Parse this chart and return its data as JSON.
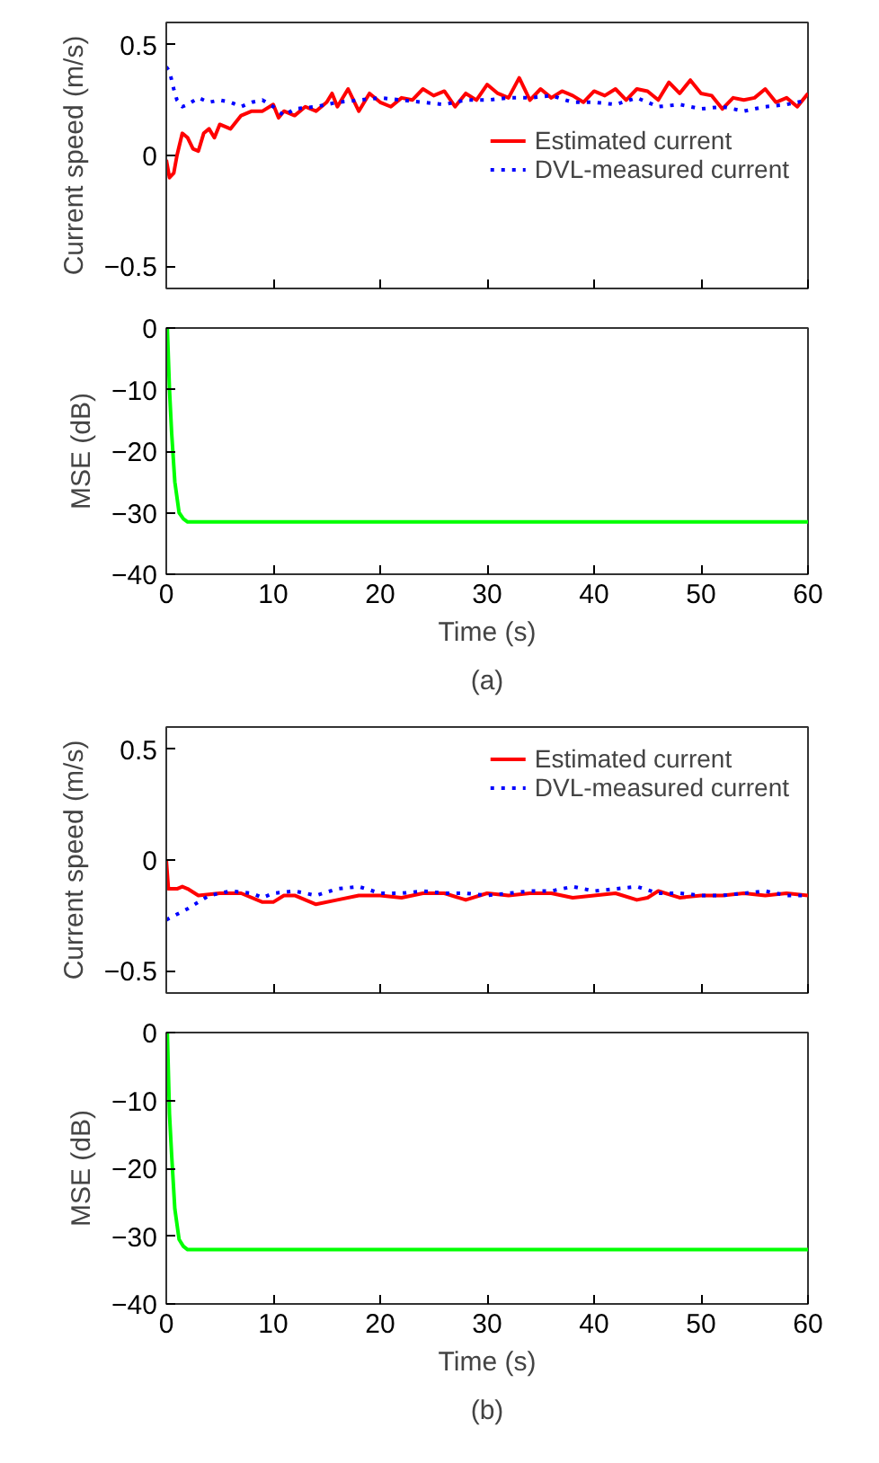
{
  "chart_data": [
    {
      "type": "line",
      "ylabel": "Current speed (m/s)",
      "xlim": [
        0,
        60
      ],
      "ylim": [
        -0.6,
        0.6
      ],
      "xticks": [
        {
          "value": 0,
          "label": null
        },
        {
          "value": 10,
          "label": null
        },
        {
          "value": 20,
          "label": null
        },
        {
          "value": 30,
          "label": null
        },
        {
          "value": 40,
          "label": null
        },
        {
          "value": 50,
          "label": null
        },
        {
          "value": 60,
          "label": null
        }
      ],
      "yticks": [
        -0.5,
        0,
        0.5
      ],
      "tick_labels": "y",
      "legend": "right",
      "grid": false,
      "series": [
        {
          "name": "Estimated current",
          "color": "#ff0000",
          "line_style": "solid",
          "x": [
            0,
            0.3,
            0.7,
            1,
            1.5,
            2,
            2.5,
            3,
            3.5,
            4,
            4.5,
            5,
            6,
            7,
            8,
            9,
            10,
            10.5,
            11,
            12,
            13,
            14,
            15,
            15.5,
            16,
            17,
            18,
            19,
            20,
            21,
            22,
            23,
            24,
            25,
            26,
            27,
            28,
            29,
            30,
            31,
            32,
            33,
            34,
            35,
            36,
            37,
            38,
            39,
            40,
            41,
            42,
            43,
            44,
            45,
            46,
            47,
            48,
            49,
            50,
            51,
            52,
            53,
            54,
            55,
            56,
            57,
            58,
            59,
            60
          ],
          "values": [
            -0.02,
            -0.1,
            -0.08,
            0.0,
            0.1,
            0.08,
            0.03,
            0.02,
            0.1,
            0.12,
            0.08,
            0.14,
            0.12,
            0.18,
            0.2,
            0.2,
            0.23,
            0.17,
            0.2,
            0.18,
            0.22,
            0.2,
            0.24,
            0.28,
            0.22,
            0.3,
            0.2,
            0.28,
            0.24,
            0.22,
            0.26,
            0.25,
            0.3,
            0.27,
            0.29,
            0.22,
            0.28,
            0.25,
            0.32,
            0.28,
            0.26,
            0.35,
            0.25,
            0.3,
            0.26,
            0.29,
            0.27,
            0.24,
            0.29,
            0.27,
            0.3,
            0.25,
            0.3,
            0.29,
            0.25,
            0.33,
            0.28,
            0.34,
            0.28,
            0.27,
            0.21,
            0.26,
            0.25,
            0.26,
            0.3,
            0.24,
            0.26,
            0.22,
            0.28
          ]
        },
        {
          "name": "DVL-measured current",
          "color": "#0000ff",
          "line_style": "dotted",
          "x": [
            0,
            0.3,
            0.7,
            1,
            1.5,
            2,
            3,
            4,
            5,
            6,
            7,
            8,
            9,
            10,
            11,
            12,
            14,
            16,
            18,
            20,
            22,
            24,
            26,
            28,
            30,
            32,
            34,
            36,
            38,
            40,
            42,
            44,
            46,
            48,
            50,
            52,
            54,
            56,
            58,
            60
          ],
          "values": [
            0.4,
            0.38,
            0.3,
            0.25,
            0.22,
            0.23,
            0.26,
            0.24,
            0.25,
            0.24,
            0.22,
            0.24,
            0.25,
            0.22,
            0.18,
            0.21,
            0.22,
            0.24,
            0.25,
            0.26,
            0.25,
            0.24,
            0.23,
            0.25,
            0.25,
            0.26,
            0.26,
            0.27,
            0.24,
            0.24,
            0.23,
            0.26,
            0.22,
            0.23,
            0.21,
            0.22,
            0.2,
            0.22,
            0.23,
            0.25
          ]
        }
      ]
    },
    {
      "type": "line",
      "xlabel": "Time (s)",
      "ylabel": "MSE (dB)",
      "xlim": [
        0,
        60
      ],
      "ylim": [
        -40,
        0
      ],
      "xticks": [
        0,
        10,
        20,
        30,
        40,
        50,
        60
      ],
      "yticks": [
        -40,
        -30,
        -20,
        -10,
        0
      ],
      "grid": false,
      "annotations": [
        "(a)"
      ],
      "series": [
        {
          "color": "#00ff00",
          "x": [
            0.1,
            0.3,
            0.5,
            0.8,
            1.2,
            1.6,
            2,
            3,
            60
          ],
          "values": [
            0,
            -10,
            -17,
            -25,
            -30,
            -31,
            -31.5,
            -31.5,
            -31.5
          ]
        }
      ]
    },
    {
      "type": "line",
      "ylabel": "Current speed (m/s)",
      "xlim": [
        0,
        60
      ],
      "ylim": [
        -0.6,
        0.6
      ],
      "xticks": [
        {
          "value": 0,
          "label": null
        },
        {
          "value": 10,
          "label": null
        },
        {
          "value": 20,
          "label": null
        },
        {
          "value": 30,
          "label": null
        },
        {
          "value": 40,
          "label": null
        },
        {
          "value": 50,
          "label": null
        },
        {
          "value": 60,
          "label": null
        }
      ],
      "yticks": [
        -0.5,
        0,
        0.5
      ],
      "tick_labels": "y",
      "legend": "top right",
      "grid": false,
      "series": [
        {
          "name": "Estimated current",
          "color": "#ff0000",
          "line_style": "solid",
          "x": [
            0,
            0.2,
            1,
            1.5,
            2,
            3,
            5,
            7,
            9,
            10,
            11,
            12,
            14,
            16,
            18,
            20,
            22,
            24,
            26,
            28,
            30,
            32,
            34,
            36,
            38,
            40,
            42,
            44,
            45,
            46,
            48,
            50,
            52,
            54,
            56,
            58,
            60
          ],
          "values": [
            0,
            -0.13,
            -0.13,
            -0.12,
            -0.13,
            -0.16,
            -0.15,
            -0.15,
            -0.19,
            -0.19,
            -0.16,
            -0.16,
            -0.2,
            -0.18,
            -0.16,
            -0.16,
            -0.17,
            -0.15,
            -0.15,
            -0.18,
            -0.15,
            -0.16,
            -0.15,
            -0.15,
            -0.17,
            -0.16,
            -0.15,
            -0.18,
            -0.17,
            -0.14,
            -0.17,
            -0.16,
            -0.16,
            -0.15,
            -0.16,
            -0.15,
            -0.16
          ]
        },
        {
          "name": "DVL-measured current",
          "color": "#0000ff",
          "line_style": "dotted",
          "x": [
            0,
            2,
            4,
            6,
            8,
            9,
            10,
            12,
            14,
            16,
            18,
            20,
            22,
            24,
            26,
            28,
            30,
            32,
            34,
            36,
            38,
            40,
            42,
            44,
            46,
            48,
            50,
            52,
            54,
            56,
            58,
            60
          ],
          "values": [
            -0.27,
            -0.22,
            -0.16,
            -0.14,
            -0.15,
            -0.17,
            -0.15,
            -0.14,
            -0.16,
            -0.13,
            -0.12,
            -0.15,
            -0.15,
            -0.14,
            -0.15,
            -0.15,
            -0.16,
            -0.15,
            -0.14,
            -0.14,
            -0.12,
            -0.14,
            -0.13,
            -0.12,
            -0.15,
            -0.15,
            -0.16,
            -0.16,
            -0.15,
            -0.14,
            -0.16,
            -0.16
          ]
        }
      ]
    },
    {
      "type": "line",
      "xlabel": "Time (s)",
      "ylabel": "MSE (dB)",
      "xlim": [
        0,
        60
      ],
      "ylim": [
        -40,
        0
      ],
      "xticks": [
        0,
        10,
        20,
        30,
        40,
        50,
        60
      ],
      "yticks": [
        -40,
        -30,
        -20,
        -10,
        0
      ],
      "grid": false,
      "annotations": [
        "(b)"
      ],
      "series": [
        {
          "color": "#00ff00",
          "x": [
            0.1,
            0.3,
            0.5,
            0.8,
            1.2,
            1.6,
            2,
            3,
            60
          ],
          "values": [
            0,
            -12,
            -18,
            -26,
            -30.5,
            -31.5,
            -32,
            -32,
            -32
          ]
        }
      ]
    }
  ]
}
